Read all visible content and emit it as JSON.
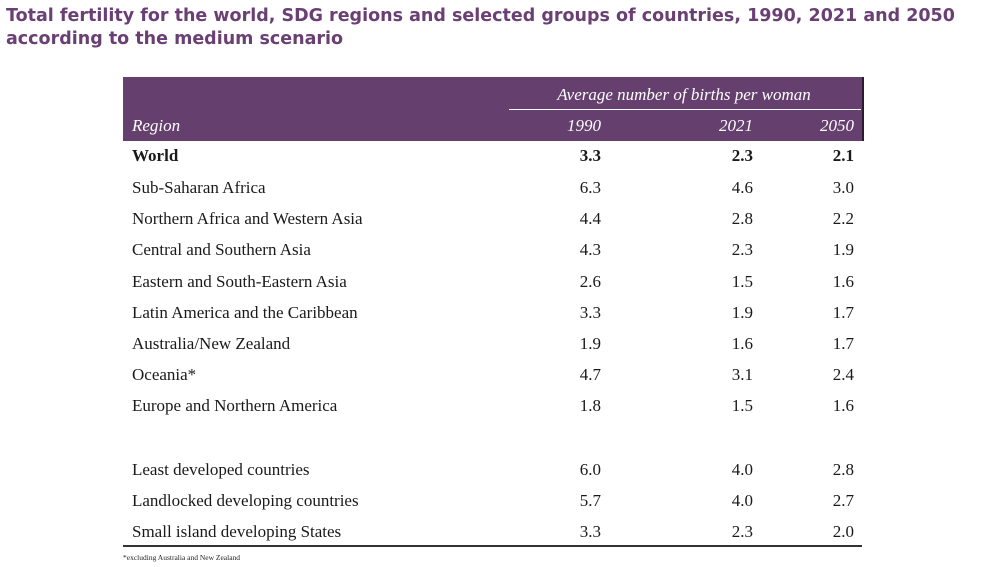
{
  "title": "Total fertility for the world, SDG regions and selected groups of countries, 1990, 2021 and 2050 according to the medium scenario",
  "table": {
    "group_header": "Average number of births per woman",
    "region_header": "Region",
    "years": [
      "1990",
      "2021",
      "2050"
    ],
    "rows": [
      {
        "region": "World",
        "v1990": "3.3",
        "v2021": "2.3",
        "v2050": "2.1"
      },
      {
        "region": "Sub-Saharan Africa",
        "v1990": "6.3",
        "v2021": "4.6",
        "v2050": "3.0"
      },
      {
        "region": "Northern Africa and Western Asia",
        "v1990": "4.4",
        "v2021": "2.8",
        "v2050": "2.2"
      },
      {
        "region": "Central and Southern Asia",
        "v1990": "4.3",
        "v2021": "2.3",
        "v2050": "1.9"
      },
      {
        "region": "Eastern and South-Eastern Asia",
        "v1990": "2.6",
        "v2021": "1.5",
        "v2050": "1.6"
      },
      {
        "region": "Latin America and the Caribbean",
        "v1990": "3.3",
        "v2021": "1.9",
        "v2050": "1.7"
      },
      {
        "region": "Australia/New Zealand",
        "v1990": "1.9",
        "v2021": "1.6",
        "v2050": "1.7"
      },
      {
        "region": "Oceania*",
        "v1990": "4.7",
        "v2021": "3.1",
        "v2050": "2.4"
      },
      {
        "region": "Europe and Northern America",
        "v1990": "1.8",
        "v2021": "1.5",
        "v2050": "1.6"
      },
      {
        "region": "Least developed countries",
        "v1990": "6.0",
        "v2021": "4.0",
        "v2050": "2.8"
      },
      {
        "region": "Landlocked developing countries",
        "v1990": "5.7",
        "v2021": "4.0",
        "v2050": "2.7"
      },
      {
        "region": "Small island developing States",
        "v1990": "3.3",
        "v2021": "2.3",
        "v2050": "2.0"
      }
    ]
  },
  "footnote": "*excluding Australia and New Zealand",
  "colors": {
    "title": "#6a3f74",
    "header_bg": "#653f6e"
  }
}
